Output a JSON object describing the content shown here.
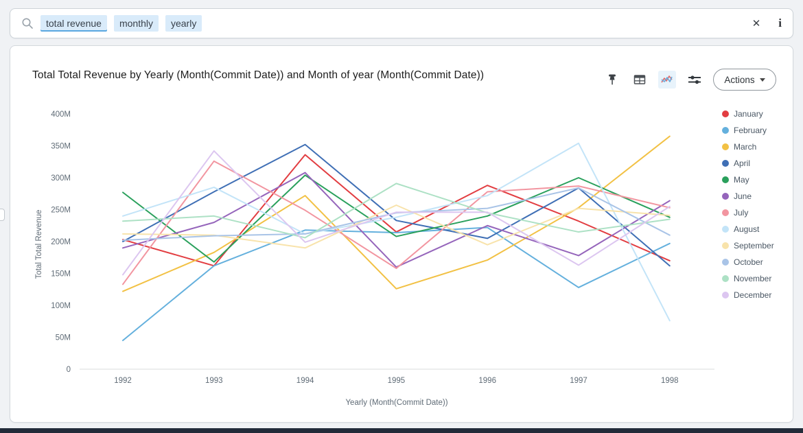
{
  "search": {
    "tokens": [
      {
        "label": "total revenue",
        "active": true
      },
      {
        "label": "monthly",
        "active": false
      },
      {
        "label": "yearly",
        "active": false
      }
    ],
    "clear_glyph": "✕",
    "info_glyph": "i"
  },
  "viz": {
    "title": "Total Total Revenue by Yearly (Month(Commit Date)) and Month of year (Month(Commit Date))",
    "actions_label": "Actions",
    "toolbar_icons": [
      "pin-icon",
      "table-icon",
      "line-chart-icon",
      "sliders-icon"
    ]
  },
  "chart_data": {
    "type": "line",
    "title": "Total Total Revenue by Yearly (Month(Commit Date)) and Month of year (Month(Commit Date))",
    "x": [
      1992,
      1993,
      1994,
      1995,
      1996,
      1997,
      1998
    ],
    "xlabel": "Yearly (Month(Commit Date))",
    "ylabel": "Total Total Revenue",
    "unit": "M (millions)",
    "ylim_millions": [
      0,
      400
    ],
    "yticks": [
      "0",
      "50M",
      "100M",
      "150M",
      "200M",
      "250M",
      "300M",
      "350M",
      "400M"
    ],
    "grid": false,
    "legend_position": "right",
    "series": [
      {
        "name": "January",
        "color": "#e23d41",
        "values_millions": [
          203,
          162,
          336,
          215,
          288,
          232,
          170
        ]
      },
      {
        "name": "February",
        "color": "#64b0dd",
        "values_millions": [
          45,
          162,
          218,
          214,
          222,
          128,
          197
        ]
      },
      {
        "name": "March",
        "color": "#f2c144",
        "values_millions": [
          122,
          183,
          272,
          126,
          171,
          253,
          365
        ]
      },
      {
        "name": "April",
        "color": "#3f6fb5",
        "values_millions": [
          200,
          278,
          352,
          233,
          205,
          284,
          162
        ]
      },
      {
        "name": "May",
        "color": "#2aa05c",
        "values_millions": [
          277,
          168,
          304,
          208,
          240,
          300,
          238
        ]
      },
      {
        "name": "June",
        "color": "#9565bb",
        "values_millions": [
          190,
          230,
          308,
          160,
          225,
          178,
          264
        ]
      },
      {
        "name": "July",
        "color": "#f295a0",
        "values_millions": [
          133,
          326,
          249,
          158,
          278,
          287,
          253
        ]
      },
      {
        "name": "August",
        "color": "#c3e4f8",
        "values_millions": [
          240,
          285,
          212,
          238,
          272,
          354,
          76
        ]
      },
      {
        "name": "September",
        "color": "#f8e3ab",
        "values_millions": [
          212,
          210,
          190,
          257,
          195,
          252,
          241
        ]
      },
      {
        "name": "October",
        "color": "#a9c4e7",
        "values_millions": [
          202,
          209,
          212,
          245,
          252,
          284,
          210
        ]
      },
      {
        "name": "November",
        "color": "#ade1c5",
        "values_millions": [
          232,
          240,
          206,
          291,
          245,
          215,
          235
        ]
      },
      {
        "name": "December",
        "color": "#dcc6f0",
        "values_millions": [
          148,
          342,
          199,
          246,
          246,
          163,
          255
        ]
      }
    ]
  }
}
